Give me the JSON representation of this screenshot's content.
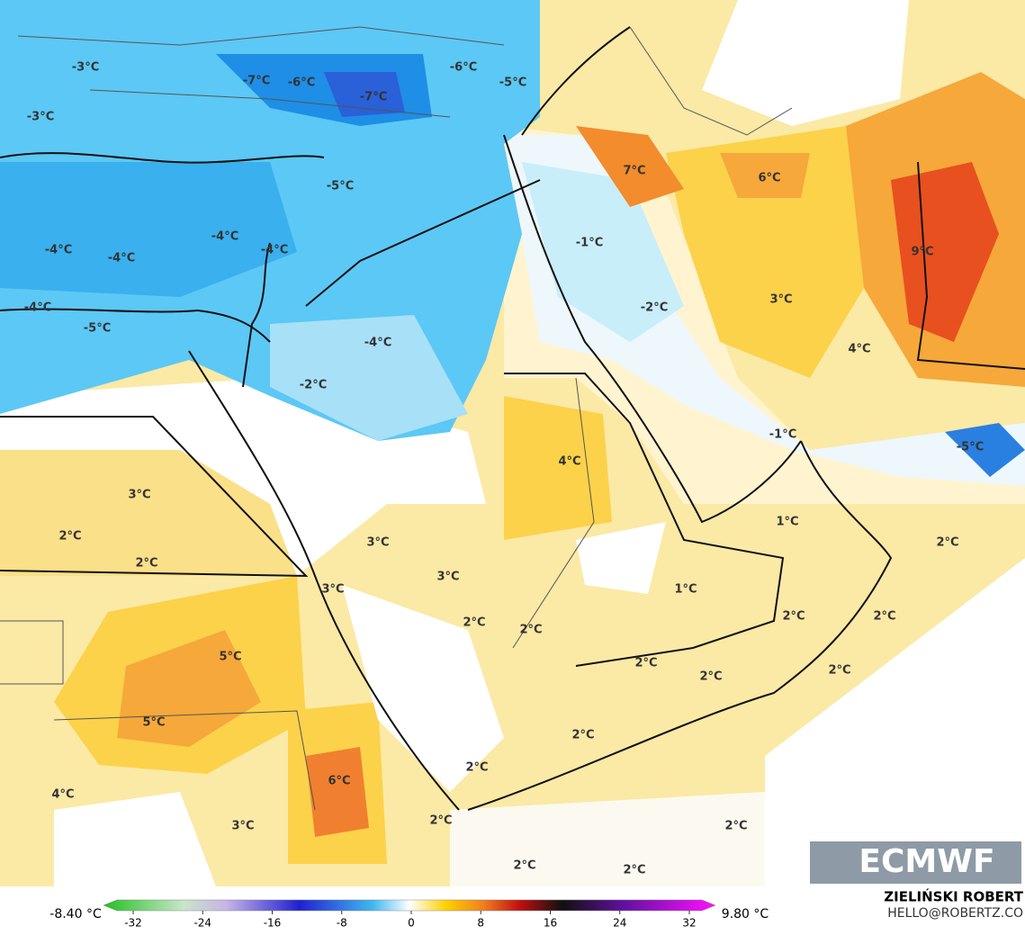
{
  "map": {
    "labels": [
      "-3°C",
      "-7°C",
      "-6°C",
      "-7°C",
      "-6°C",
      "-5°C",
      "-3°C",
      "-5°C",
      "-4°C",
      "-4°C",
      "-4°C",
      "-4°C",
      "-4°C",
      "-5°C",
      "-4°C",
      "-2°C",
      "7°C",
      "6°C",
      "-1°C",
      "9°C",
      "3°C",
      "-2°C",
      "4°C",
      "-1°C",
      "-5°C",
      "4°C",
      "3°C",
      "2°C",
      "2°C",
      "3°C",
      "1°C",
      "2°C",
      "3°C",
      "3°C",
      "1°C",
      "2°C",
      "2°C",
      "2°C",
      "2°C",
      "5°C",
      "2°C",
      "2°C",
      "2°C",
      "5°C",
      "2°C",
      "2°C",
      "6°C",
      "4°C",
      "3°C",
      "2°C",
      "2°C",
      "2°C",
      "2°C"
    ],
    "logo": "ECMWF"
  },
  "colorbar": {
    "min_label": "-8.40 °C",
    "max_label": "9.80 °C",
    "ticks": [
      -32,
      -24,
      -16,
      -8,
      0,
      8,
      16,
      24,
      32
    ]
  },
  "credits": {
    "author": "ZIELIŃSKI ROBERT",
    "email": "HELLO@ROBERTZ.CO"
  }
}
